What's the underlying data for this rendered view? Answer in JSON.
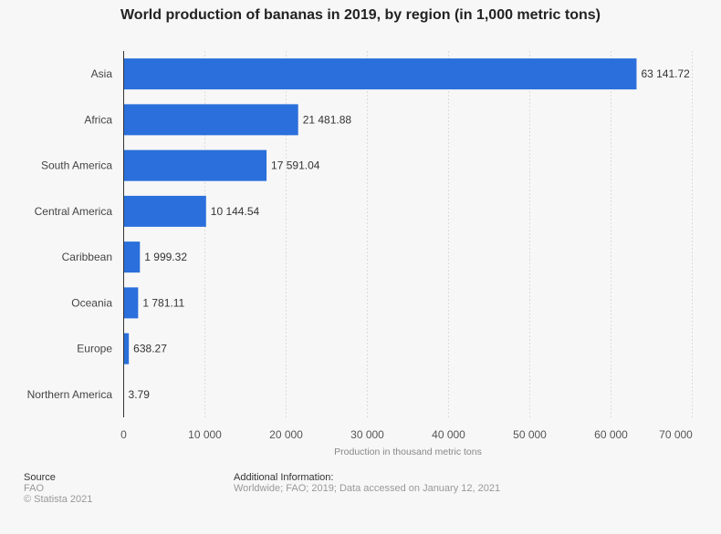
{
  "chart_data": {
    "type": "bar",
    "orientation": "horizontal",
    "title": "World production of bananas in 2019, by region (in 1,000 metric tons)",
    "categories": [
      "Asia",
      "Africa",
      "South America",
      "Central America",
      "Caribbean",
      "Oceania",
      "Europe",
      "Northern America"
    ],
    "values": [
      63141.72,
      21481.88,
      17591.04,
      10144.54,
      1999.32,
      1781.11,
      638.27,
      3.79
    ],
    "value_labels": [
      "63 141.72",
      "21 481.88",
      "17 591.04",
      "10 144.54",
      "1 999.32",
      "1 781.11",
      "638.27",
      "3.79"
    ],
    "xlabel": "Production in thousand metric tons",
    "ylabel": "",
    "xlim": [
      0,
      70000
    ],
    "xticks": [
      0,
      10000,
      20000,
      30000,
      40000,
      50000,
      60000,
      70000
    ],
    "xtick_labels": [
      "0",
      "10 000",
      "20 000",
      "30 000",
      "40 000",
      "50 000",
      "60 000",
      "70 000"
    ],
    "grid": true,
    "bar_color": "#2a6fdb"
  },
  "footer": {
    "source_heading": "Source",
    "source": "FAO",
    "copyright": "© Statista 2021",
    "info_heading": "Additional Information:",
    "info": "Worldwide; FAO; 2019; Data accessed on January 12, 2021"
  }
}
